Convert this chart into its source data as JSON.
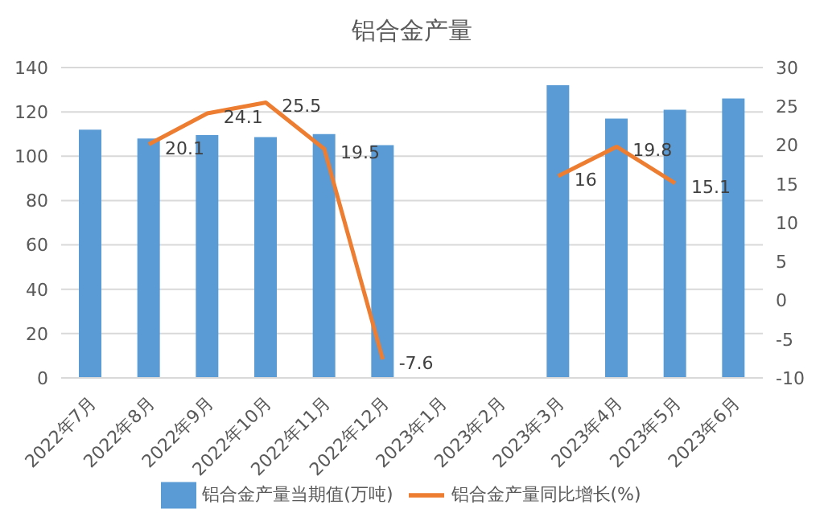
{
  "chart_data": {
    "type": "bar",
    "title": "铝合金产量",
    "categories": [
      "2022年7月",
      "2022年8月",
      "2022年9月",
      "2022年10月",
      "2022年11月",
      "2022年12月",
      "2023年1月",
      "2023年2月",
      "2023年3月",
      "2023年4月",
      "2023年5月",
      "2023年6月"
    ],
    "series": [
      {
        "name": "铝合金产量当期值(万吨)",
        "color": "#5b9bd5",
        "values": [
          112,
          108,
          109.5,
          108.6,
          110,
          105,
          null,
          null,
          132,
          117,
          121,
          126
        ]
      },
      {
        "name": "铝合金产量同比增长(%)",
        "type": "line",
        "axis": "y2",
        "color": "#ed7d31",
        "values": [
          null,
          20.1,
          24.1,
          25.5,
          19.5,
          -7.6,
          null,
          null,
          16,
          19.8,
          15.1,
          null
        ],
        "value_labels": [
          null,
          "20.1",
          "24.1",
          "25.5",
          "19.5",
          "-7.6",
          null,
          null,
          "16",
          "19.8",
          "15.1",
          null
        ]
      }
    ],
    "ylim": [
      0,
      140
    ],
    "yticks": [
      0,
      20,
      40,
      60,
      80,
      100,
      120,
      140
    ],
    "y2lim": [
      -10,
      30
    ],
    "y2ticks": [
      -10,
      -5,
      0,
      5,
      10,
      15,
      20,
      25,
      30
    ],
    "grid": "y",
    "legend": "bottom",
    "marker": "none"
  }
}
